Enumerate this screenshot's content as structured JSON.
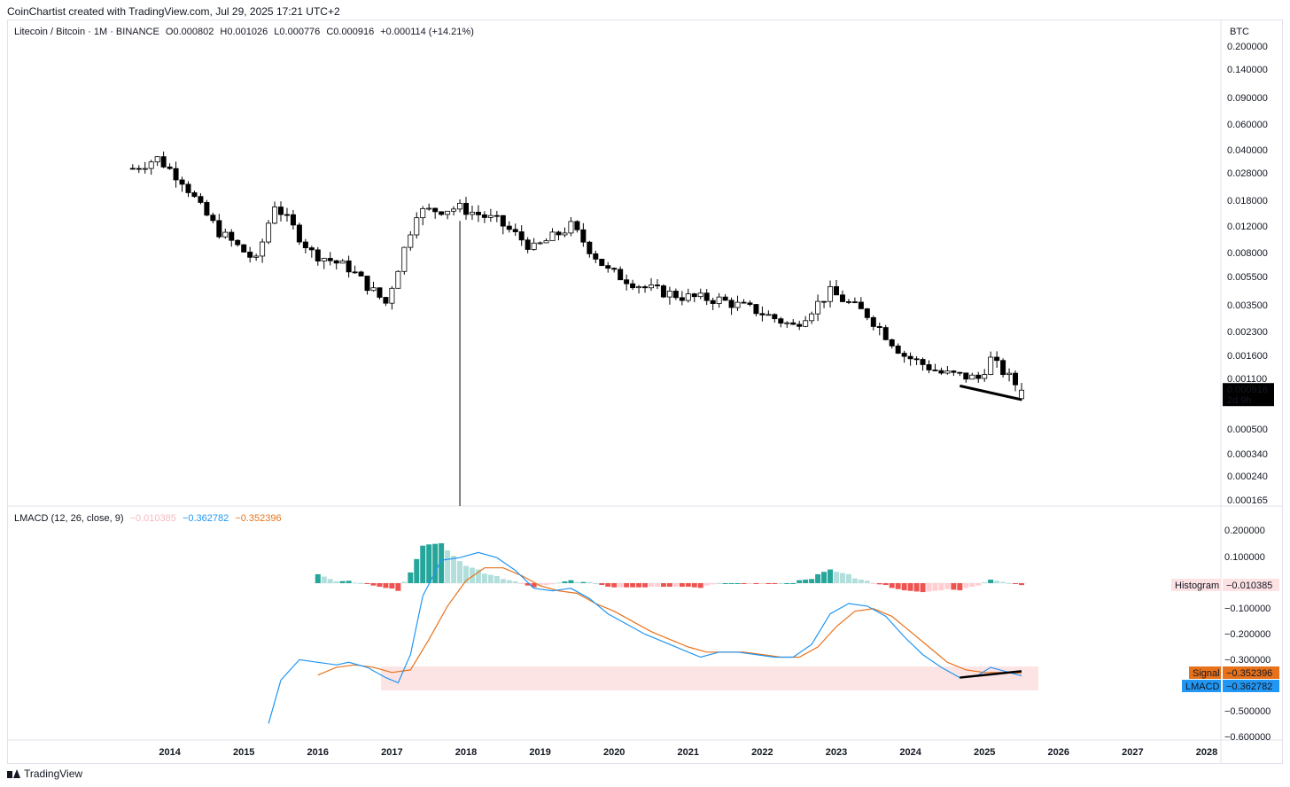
{
  "header": {
    "text": "CoinChartist created with TradingView.com, Jul 29, 2025 17:21 UTC+2"
  },
  "footer": {
    "brand": "TradingView"
  },
  "price_legend": {
    "symbol": "Litecoin / Bitcoin · 1M · BINANCE",
    "open": "O0.000802",
    "high": "H0.001026",
    "low": "L0.000776",
    "close": "C0.000916",
    "change": "+0.000114 (+14.21%)"
  },
  "price_axis": {
    "currency": "BTC",
    "ticks": [
      "0.200000",
      "0.140000",
      "0.090000",
      "0.060000",
      "0.040000",
      "0.028000",
      "0.018000",
      "0.012000",
      "0.008000",
      "0.005500",
      "0.003500",
      "0.002300",
      "0.001600",
      "0.001100",
      "0.000500",
      "0.000340",
      "0.000240",
      "0.000165"
    ],
    "last_price": "0.000916",
    "countdown": "2d 9h"
  },
  "macd_legend": {
    "name": "LMACD (12, 26, close, 9)",
    "histogram": "−0.010385",
    "macd": "−0.362782",
    "signal": "−0.352396"
  },
  "macd_axis": {
    "ticks": [
      "0.200000",
      "0.100000",
      "−0.100000",
      "−0.200000",
      "−0.300000",
      "−0.500000",
      "−0.600000"
    ],
    "histogram_label": "Histogram",
    "histogram_value": "−0.010385",
    "signal_label": "Signal",
    "signal_value": "−0.352396",
    "macd_label": "LMACD",
    "macd_value": "−0.362782"
  },
  "time_axis": {
    "years": [
      "2014",
      "2015",
      "2016",
      "2017",
      "2018",
      "2019",
      "2020",
      "2021",
      "2022",
      "2023",
      "2024",
      "2025",
      "2026",
      "2027",
      "2028"
    ]
  },
  "colors": {
    "up_candle": "#ffffff",
    "down_candle": "#000000",
    "hist_pos_strong": "#26a69a",
    "hist_pos_weak": "#b2dfdb",
    "hist_neg_strong": "#ef5350",
    "hist_neg_weak": "#ffcdd2",
    "macd_line": "#2196f3",
    "signal_line": "#e8721c",
    "zone": "#fde4e4"
  },
  "chart_data": [
    {
      "type": "candlestick",
      "title": "Litecoin / Bitcoin · 1M · BINANCE",
      "ylabel": "BTC",
      "y_scale": "log",
      "x_range": [
        "2013-06",
        "2028-06"
      ],
      "ohlc_approx": [
        {
          "t": "2013-07",
          "trend_close": 0.03
        },
        {
          "t": "2013-11",
          "trend_close": 0.035
        },
        {
          "t": "2014-03",
          "trend_close": 0.025
        },
        {
          "t": "2014-06",
          "trend_close": 0.016
        },
        {
          "t": "2014-09",
          "trend_close": 0.011
        },
        {
          "t": "2015-03",
          "trend_close": 0.007
        },
        {
          "t": "2015-06",
          "trend_close": 0.017
        },
        {
          "t": "2015-12",
          "trend_close": 0.008
        },
        {
          "t": "2016-06",
          "trend_close": 0.0063
        },
        {
          "t": "2016-12",
          "trend_close": 0.0036
        },
        {
          "t": "2017-05",
          "trend_close": 0.015
        },
        {
          "t": "2017-12",
          "trend_close": 0.016
        },
        {
          "t": "2018-06",
          "trend_close": 0.013
        },
        {
          "t": "2018-12",
          "trend_close": 0.0085
        },
        {
          "t": "2019-06",
          "trend_close": 0.012
        },
        {
          "t": "2019-12",
          "trend_close": 0.006
        },
        {
          "t": "2020-06",
          "trend_close": 0.0046
        },
        {
          "t": "2020-12",
          "trend_close": 0.004
        },
        {
          "t": "2021-06",
          "trend_close": 0.0038
        },
        {
          "t": "2021-12",
          "trend_close": 0.0032
        },
        {
          "t": "2022-06",
          "trend_close": 0.0025
        },
        {
          "t": "2022-12",
          "trend_close": 0.0043
        },
        {
          "t": "2023-06",
          "trend_close": 0.003
        },
        {
          "t": "2023-12",
          "trend_close": 0.0016
        },
        {
          "t": "2024-06",
          "trend_close": 0.0012
        },
        {
          "t": "2024-12",
          "trend_close": 0.0011
        },
        {
          "t": "2025-02",
          "trend_close": 0.0015
        },
        {
          "t": "2025-07",
          "trend_close": 0.000916
        }
      ],
      "last": {
        "open": 0.000802,
        "high": 0.001026,
        "low": 0.000776,
        "close": 0.000916
      },
      "trendline": [
        {
          "t": "2024-09",
          "v": 0.00098
        },
        {
          "t": "2025-07",
          "v": 0.00079
        }
      ]
    },
    {
      "type": "line",
      "title": "LMACD (12, 26, close, 9)",
      "series": [
        {
          "name": "LMACD",
          "points": [
            [
              "2015-05",
              -0.55
            ],
            [
              "2015-07",
              -0.38
            ],
            [
              "2015-10",
              -0.3
            ],
            [
              "2016-01",
              -0.31
            ],
            [
              "2016-04",
              -0.32
            ],
            [
              "2016-06",
              -0.31
            ],
            [
              "2016-09",
              -0.33
            ],
            [
              "2016-12",
              -0.37
            ],
            [
              "2017-02",
              -0.39
            ],
            [
              "2017-04",
              -0.28
            ],
            [
              "2017-06",
              -0.05
            ],
            [
              "2017-09",
              0.09
            ],
            [
              "2017-12",
              0.1
            ],
            [
              "2018-03",
              0.12
            ],
            [
              "2018-06",
              0.1
            ],
            [
              "2018-09",
              0.05
            ],
            [
              "2018-12",
              -0.02
            ],
            [
              "2019-03",
              -0.03
            ],
            [
              "2019-06",
              -0.02
            ],
            [
              "2019-09",
              -0.06
            ],
            [
              "2019-12",
              -0.12
            ],
            [
              "2020-03",
              -0.16
            ],
            [
              "2020-06",
              -0.2
            ],
            [
              "2020-09",
              -0.23
            ],
            [
              "2020-12",
              -0.26
            ],
            [
              "2021-03",
              -0.29
            ],
            [
              "2021-06",
              -0.27
            ],
            [
              "2021-09",
              -0.27
            ],
            [
              "2021-12",
              -0.28
            ],
            [
              "2022-03",
              -0.29
            ],
            [
              "2022-06",
              -0.29
            ],
            [
              "2022-09",
              -0.24
            ],
            [
              "2022-12",
              -0.12
            ],
            [
              "2023-03",
              -0.08
            ],
            [
              "2023-06",
              -0.09
            ],
            [
              "2023-09",
              -0.13
            ],
            [
              "2023-12",
              -0.21
            ],
            [
              "2024-03",
              -0.28
            ],
            [
              "2024-06",
              -0.33
            ],
            [
              "2024-09",
              -0.37
            ],
            [
              "2024-12",
              -0.36
            ],
            [
              "2025-02",
              -0.33
            ],
            [
              "2025-05",
              -0.35
            ],
            [
              "2025-07",
              -0.362782
            ]
          ]
        },
        {
          "name": "Signal",
          "points": [
            [
              "2016-01",
              -0.36
            ],
            [
              "2016-04",
              -0.33
            ],
            [
              "2016-07",
              -0.32
            ],
            [
              "2016-10",
              -0.33
            ],
            [
              "2017-01",
              -0.35
            ],
            [
              "2017-04",
              -0.34
            ],
            [
              "2017-07",
              -0.22
            ],
            [
              "2017-10",
              -0.09
            ],
            [
              "2018-01",
              0.01
            ],
            [
              "2018-04",
              0.06
            ],
            [
              "2018-07",
              0.06
            ],
            [
              "2018-10",
              0.03
            ],
            [
              "2019-01",
              -0.01
            ],
            [
              "2019-04",
              -0.03
            ],
            [
              "2019-07",
              -0.04
            ],
            [
              "2019-10",
              -0.08
            ],
            [
              "2020-01",
              -0.11
            ],
            [
              "2020-04",
              -0.15
            ],
            [
              "2020-07",
              -0.19
            ],
            [
              "2020-10",
              -0.22
            ],
            [
              "2021-01",
              -0.25
            ],
            [
              "2021-04",
              -0.27
            ],
            [
              "2021-07",
              -0.27
            ],
            [
              "2021-10",
              -0.27
            ],
            [
              "2022-01",
              -0.28
            ],
            [
              "2022-04",
              -0.29
            ],
            [
              "2022-07",
              -0.29
            ],
            [
              "2022-10",
              -0.25
            ],
            [
              "2023-01",
              -0.17
            ],
            [
              "2023-04",
              -0.11
            ],
            [
              "2023-07",
              -0.1
            ],
            [
              "2023-10",
              -0.13
            ],
            [
              "2024-01",
              -0.19
            ],
            [
              "2024-04",
              -0.25
            ],
            [
              "2024-07",
              -0.31
            ],
            [
              "2024-10",
              -0.34
            ],
            [
              "2025-01",
              -0.35
            ],
            [
              "2025-04",
              -0.35
            ],
            [
              "2025-07",
              -0.352396
            ]
          ]
        }
      ],
      "histogram_last": -0.010385,
      "ylim": [
        -0.6,
        0.2
      ]
    }
  ]
}
